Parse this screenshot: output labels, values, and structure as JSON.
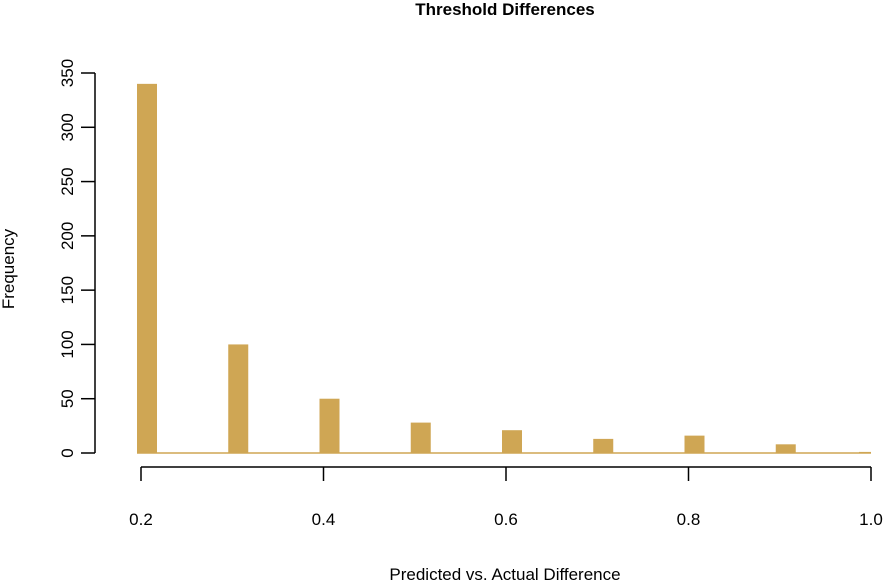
{
  "chart_data": {
    "type": "bar",
    "title": "Threshold Differences",
    "xlabel": "Predicted vs. Actual Difference",
    "ylabel": "Frequency",
    "xlim": [
      0.2,
      1.0
    ],
    "ylim": [
      0,
      350
    ],
    "x_ticks": [
      "0.2",
      "0.4",
      "0.6",
      "0.8",
      "1.0"
    ],
    "y_ticks": [
      "0",
      "50",
      "100",
      "150",
      "200",
      "250",
      "300",
      "350"
    ],
    "bar_color": "#cfa654",
    "x": [
      0.2,
      0.3,
      0.4,
      0.5,
      0.6,
      0.7,
      0.8,
      0.9,
      1.0
    ],
    "values": [
      340,
      100,
      50,
      28,
      21,
      13,
      16,
      8,
      1
    ],
    "grid": false,
    "legend": "none"
  }
}
